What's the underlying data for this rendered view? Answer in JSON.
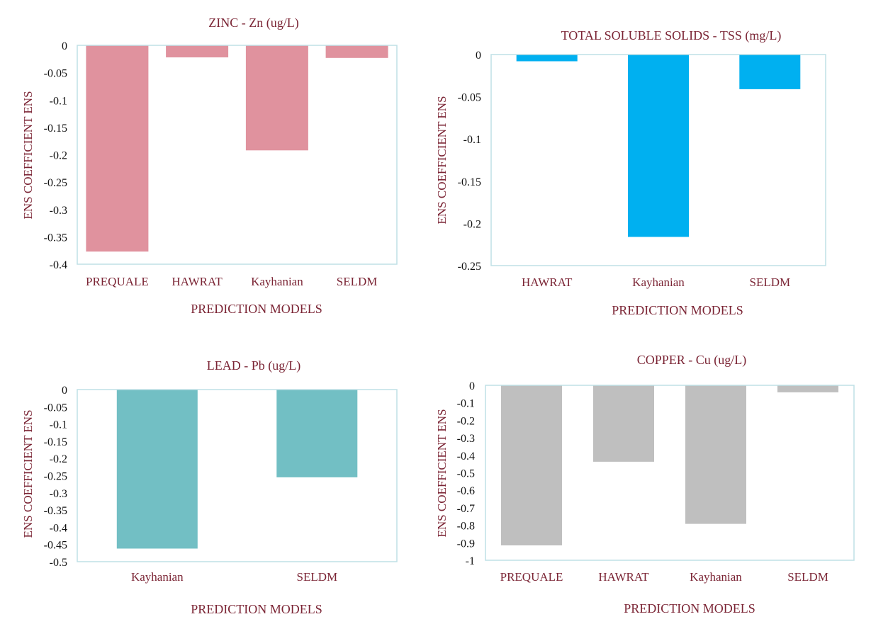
{
  "theme": {
    "text_color": "#7b2535",
    "tick_color": "#111111",
    "frame_color": "#bfe0e6"
  },
  "chart_data": [
    {
      "type": "bar",
      "title": "ZINC - Zn (ug/L)",
      "xlabel": "PREDICTION MODELS",
      "ylabel": "ENS COEFFICIENT ENS",
      "categories": [
        "PREQUALE",
        "HAWRAT",
        "Kayhanian",
        "SELDM"
      ],
      "values": [
        -0.377,
        -0.022,
        -0.192,
        -0.023
      ],
      "ylim": [
        -0.4,
        0
      ],
      "yticks": [
        0,
        -0.05,
        -0.1,
        -0.15,
        -0.2,
        -0.25,
        -0.3,
        -0.35,
        -0.4
      ],
      "color": "#e0929e",
      "grid": false,
      "legend": "none"
    },
    {
      "type": "bar",
      "title": "TOTAL SOLUBLE SOLIDS - TSS (mg/L)",
      "xlabel": "PREDICTION MODELS",
      "ylabel": "ENS COEFFICIENT ENS",
      "categories": [
        "HAWRAT",
        "Kayhanian",
        "SELDM"
      ],
      "values": [
        -0.008,
        -0.216,
        -0.041
      ],
      "ylim": [
        -0.25,
        0
      ],
      "yticks": [
        0,
        -0.05,
        -0.1,
        -0.15,
        -0.2,
        -0.25
      ],
      "color": "#00b0f0",
      "grid": false,
      "legend": "none"
    },
    {
      "type": "bar",
      "title": "LEAD - Pb (ug/L)",
      "xlabel": "PREDICTION MODELS",
      "ylabel": "ENS COEFFICIENT ENS",
      "categories": [
        "Kayhanian",
        "SELDM"
      ],
      "values": [
        -0.462,
        -0.255
      ],
      "ylim": [
        -0.5,
        0
      ],
      "yticks": [
        0,
        -0.05,
        -0.1,
        -0.15,
        -0.2,
        -0.25,
        -0.3,
        -0.35,
        -0.4,
        -0.45,
        -0.5
      ],
      "color": "#72bfc4",
      "grid": false,
      "legend": "none"
    },
    {
      "type": "bar",
      "title": "COPPER - Cu (ug/L)",
      "xlabel": "PREDICTION MODELS",
      "ylabel": "ENS COEFFICIENT ENS",
      "categories": [
        "PREQUALE",
        "HAWRAT",
        "Kayhanian",
        "SELDM"
      ],
      "values": [
        -0.915,
        -0.437,
        -0.792,
        -0.04
      ],
      "ylim": [
        -1,
        0
      ],
      "yticks": [
        0,
        -0.1,
        -0.2,
        -0.3,
        -0.4,
        -0.5,
        -0.6,
        -0.7,
        -0.8,
        -0.9,
        -1
      ],
      "color": "#bfbfbf",
      "grid": false,
      "legend": "none"
    }
  ]
}
